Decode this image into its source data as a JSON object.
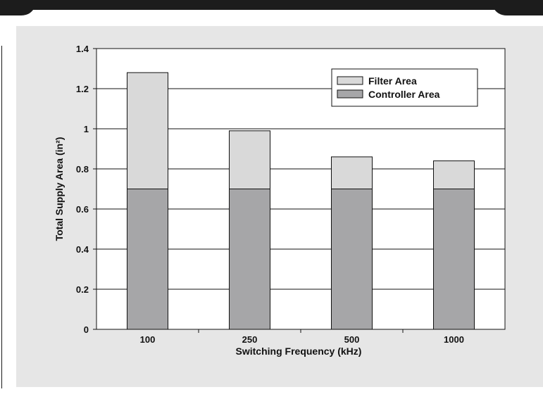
{
  "chart_data": {
    "type": "bar",
    "stacked": true,
    "categories": [
      "100",
      "250",
      "500",
      "1000"
    ],
    "series": [
      {
        "name": "Controller Area",
        "values": [
          0.7,
          0.7,
          0.7,
          0.7
        ],
        "color": "#a6a6a8"
      },
      {
        "name": "Filter Area",
        "values": [
          0.58,
          0.29,
          0.16,
          0.14
        ],
        "color": "#d9d9d9"
      }
    ],
    "totals": [
      1.28,
      0.99,
      0.86,
      0.84
    ],
    "xlabel": "Switching Frequency (kHz)",
    "ylabel": "Total Supply Area (in²)",
    "ylim": [
      0,
      1.4
    ],
    "yticks": [
      0,
      0.2,
      0.4,
      0.6,
      0.8,
      1,
      1.2,
      1.4
    ],
    "ytick_labels": [
      "0",
      "0.2",
      "0.4",
      "0.6",
      "0.8",
      "1",
      "1.2",
      "1.4"
    ],
    "grid": "horizontal",
    "legend_position": "top-right",
    "legend_order": [
      "Filter Area",
      "Controller Area"
    ]
  },
  "colors": {
    "panel_background": "#e6e6e6",
    "plot_background": "#ffffff",
    "top_band": "#1c1c1c"
  }
}
